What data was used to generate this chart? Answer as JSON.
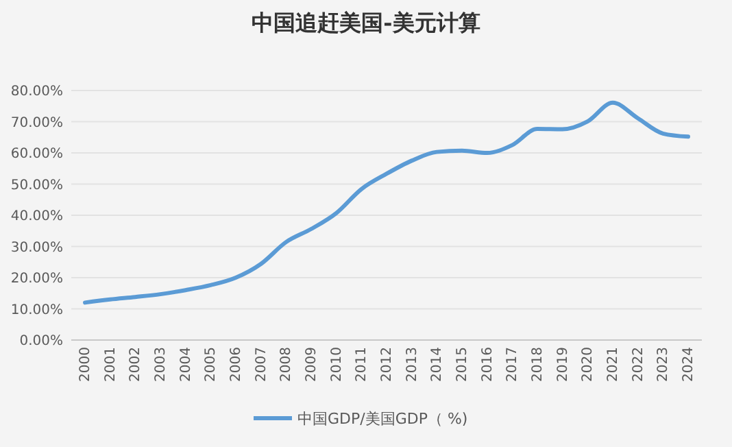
{
  "chart_data": {
    "type": "line",
    "title": "中国追赶美国-美元计算",
    "categories": [
      "2000",
      "2001",
      "2002",
      "2003",
      "2004",
      "2005",
      "2006",
      "2007",
      "2008",
      "2009",
      "2010",
      "2011",
      "2012",
      "2013",
      "2014",
      "2015",
      "2016",
      "2017",
      "2018",
      "2019",
      "2020",
      "2021",
      "2022",
      "2023",
      "2024"
    ],
    "series": [
      {
        "name": "中国GDP/美国GDP（ %)",
        "color": "#5b9bd5",
        "values": [
          12,
          13,
          13.8,
          14.7,
          16,
          17.6,
          20,
          24.4,
          31.4,
          35.6,
          40.7,
          48.4,
          53.3,
          57.5,
          60.3,
          60.7,
          60,
          62.5,
          67.7,
          67.6,
          70.1,
          76.1,
          71.1,
          66.2,
          65.2
        ]
      }
    ],
    "ylim": [
      0,
      80
    ],
    "yticks": [
      {
        "value": 0,
        "label": "0.00%"
      },
      {
        "value": 10,
        "label": "10.00%"
      },
      {
        "value": 20,
        "label": "20.00%"
      },
      {
        "value": 30,
        "label": "30.00%"
      },
      {
        "value": 40,
        "label": "40.00%"
      },
      {
        "value": 50,
        "label": "50.00%"
      },
      {
        "value": 60,
        "label": "60.00%"
      },
      {
        "value": 70,
        "label": "70.00%"
      },
      {
        "value": 80,
        "label": "80.00%"
      }
    ],
    "grid": "y",
    "legend": "bottom",
    "marker": "none",
    "line_style": "solid"
  }
}
